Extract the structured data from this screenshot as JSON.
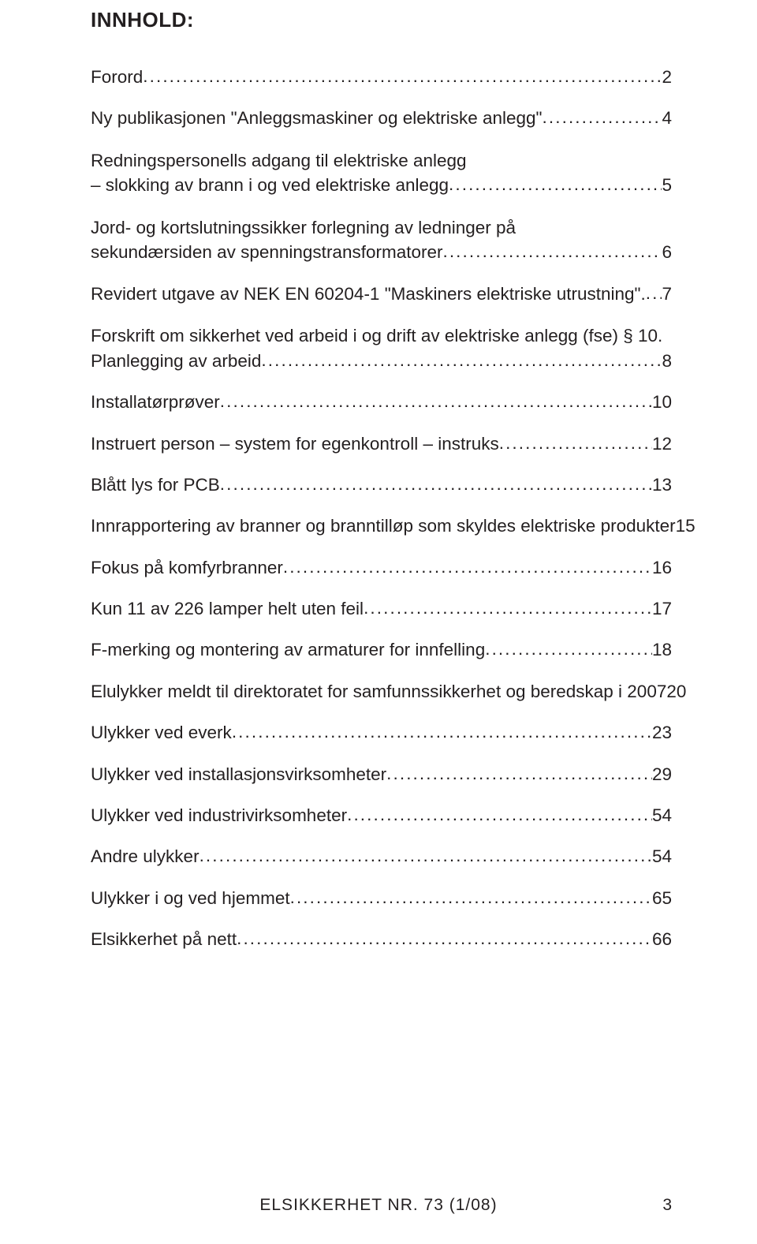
{
  "heading": "INNHOLD:",
  "entries": [
    {
      "type": "single",
      "text": "Forord",
      "page": "2"
    },
    {
      "type": "single",
      "text": "Ny publikasjonen \"Anleggsmaskiner og elektriske anlegg\"",
      "page": "4"
    },
    {
      "type": "multi",
      "line1": "Redningspersonells adgang til elektriske anlegg",
      "line2": "– slokking av brann i og ved elektriske anlegg",
      "page": "5"
    },
    {
      "type": "multi",
      "line1": "Jord- og kortslutningssikker forlegning av ledninger på",
      "line2": "sekundærsiden av spenningstransformatorer",
      "page": "6"
    },
    {
      "type": "single",
      "text": "Revidert utgave av NEK EN 60204-1 \"Maskiners elektriske utrustning\".",
      "page": "7"
    },
    {
      "type": "multi",
      "line1": "Forskrift om sikkerhet ved arbeid i og drift av elektriske anlegg (fse) § 10.",
      "line2": "Planlegging av arbeid",
      "page": "8"
    },
    {
      "type": "single",
      "text": "Installatørprøver",
      "page": "10"
    },
    {
      "type": "single",
      "text": "Instruert person – system for egenkontroll – instruks",
      "page": "12"
    },
    {
      "type": "single",
      "text": "Blått lys for PCB",
      "page": "13"
    },
    {
      "type": "single",
      "text": "Innrapportering av branner og branntilløp som skyldes elektriske produkter",
      "page": "15"
    },
    {
      "type": "single",
      "text": "Fokus på komfyrbranner",
      "page": "16"
    },
    {
      "type": "single",
      "text": "Kun 11 av 226 lamper helt uten feil",
      "page": "17"
    },
    {
      "type": "single",
      "text": "F-merking og montering av armaturer for innfelling",
      "page": "18"
    },
    {
      "type": "single",
      "text": "Elulykker meldt til direktoratet for samfunnssikkerhet og beredskap i 2007",
      "page": "20"
    },
    {
      "type": "single",
      "text": "Ulykker ved everk",
      "page": "23"
    },
    {
      "type": "single",
      "text": "Ulykker ved installasjonsvirksomheter",
      "page": "29"
    },
    {
      "type": "single",
      "text": "Ulykker ved industrivirksomheter",
      "page": "54"
    },
    {
      "type": "single",
      "text": "Andre ulykker",
      "page": "54"
    },
    {
      "type": "single",
      "text": "Ulykker i og ved hjemmet",
      "page": "65"
    },
    {
      "type": "single",
      "text": "Elsikkerhet på nett",
      "page": "66"
    }
  ],
  "footer_text": "ELSIKKERHET NR. 73 (1/08)",
  "footer_page": "3"
}
